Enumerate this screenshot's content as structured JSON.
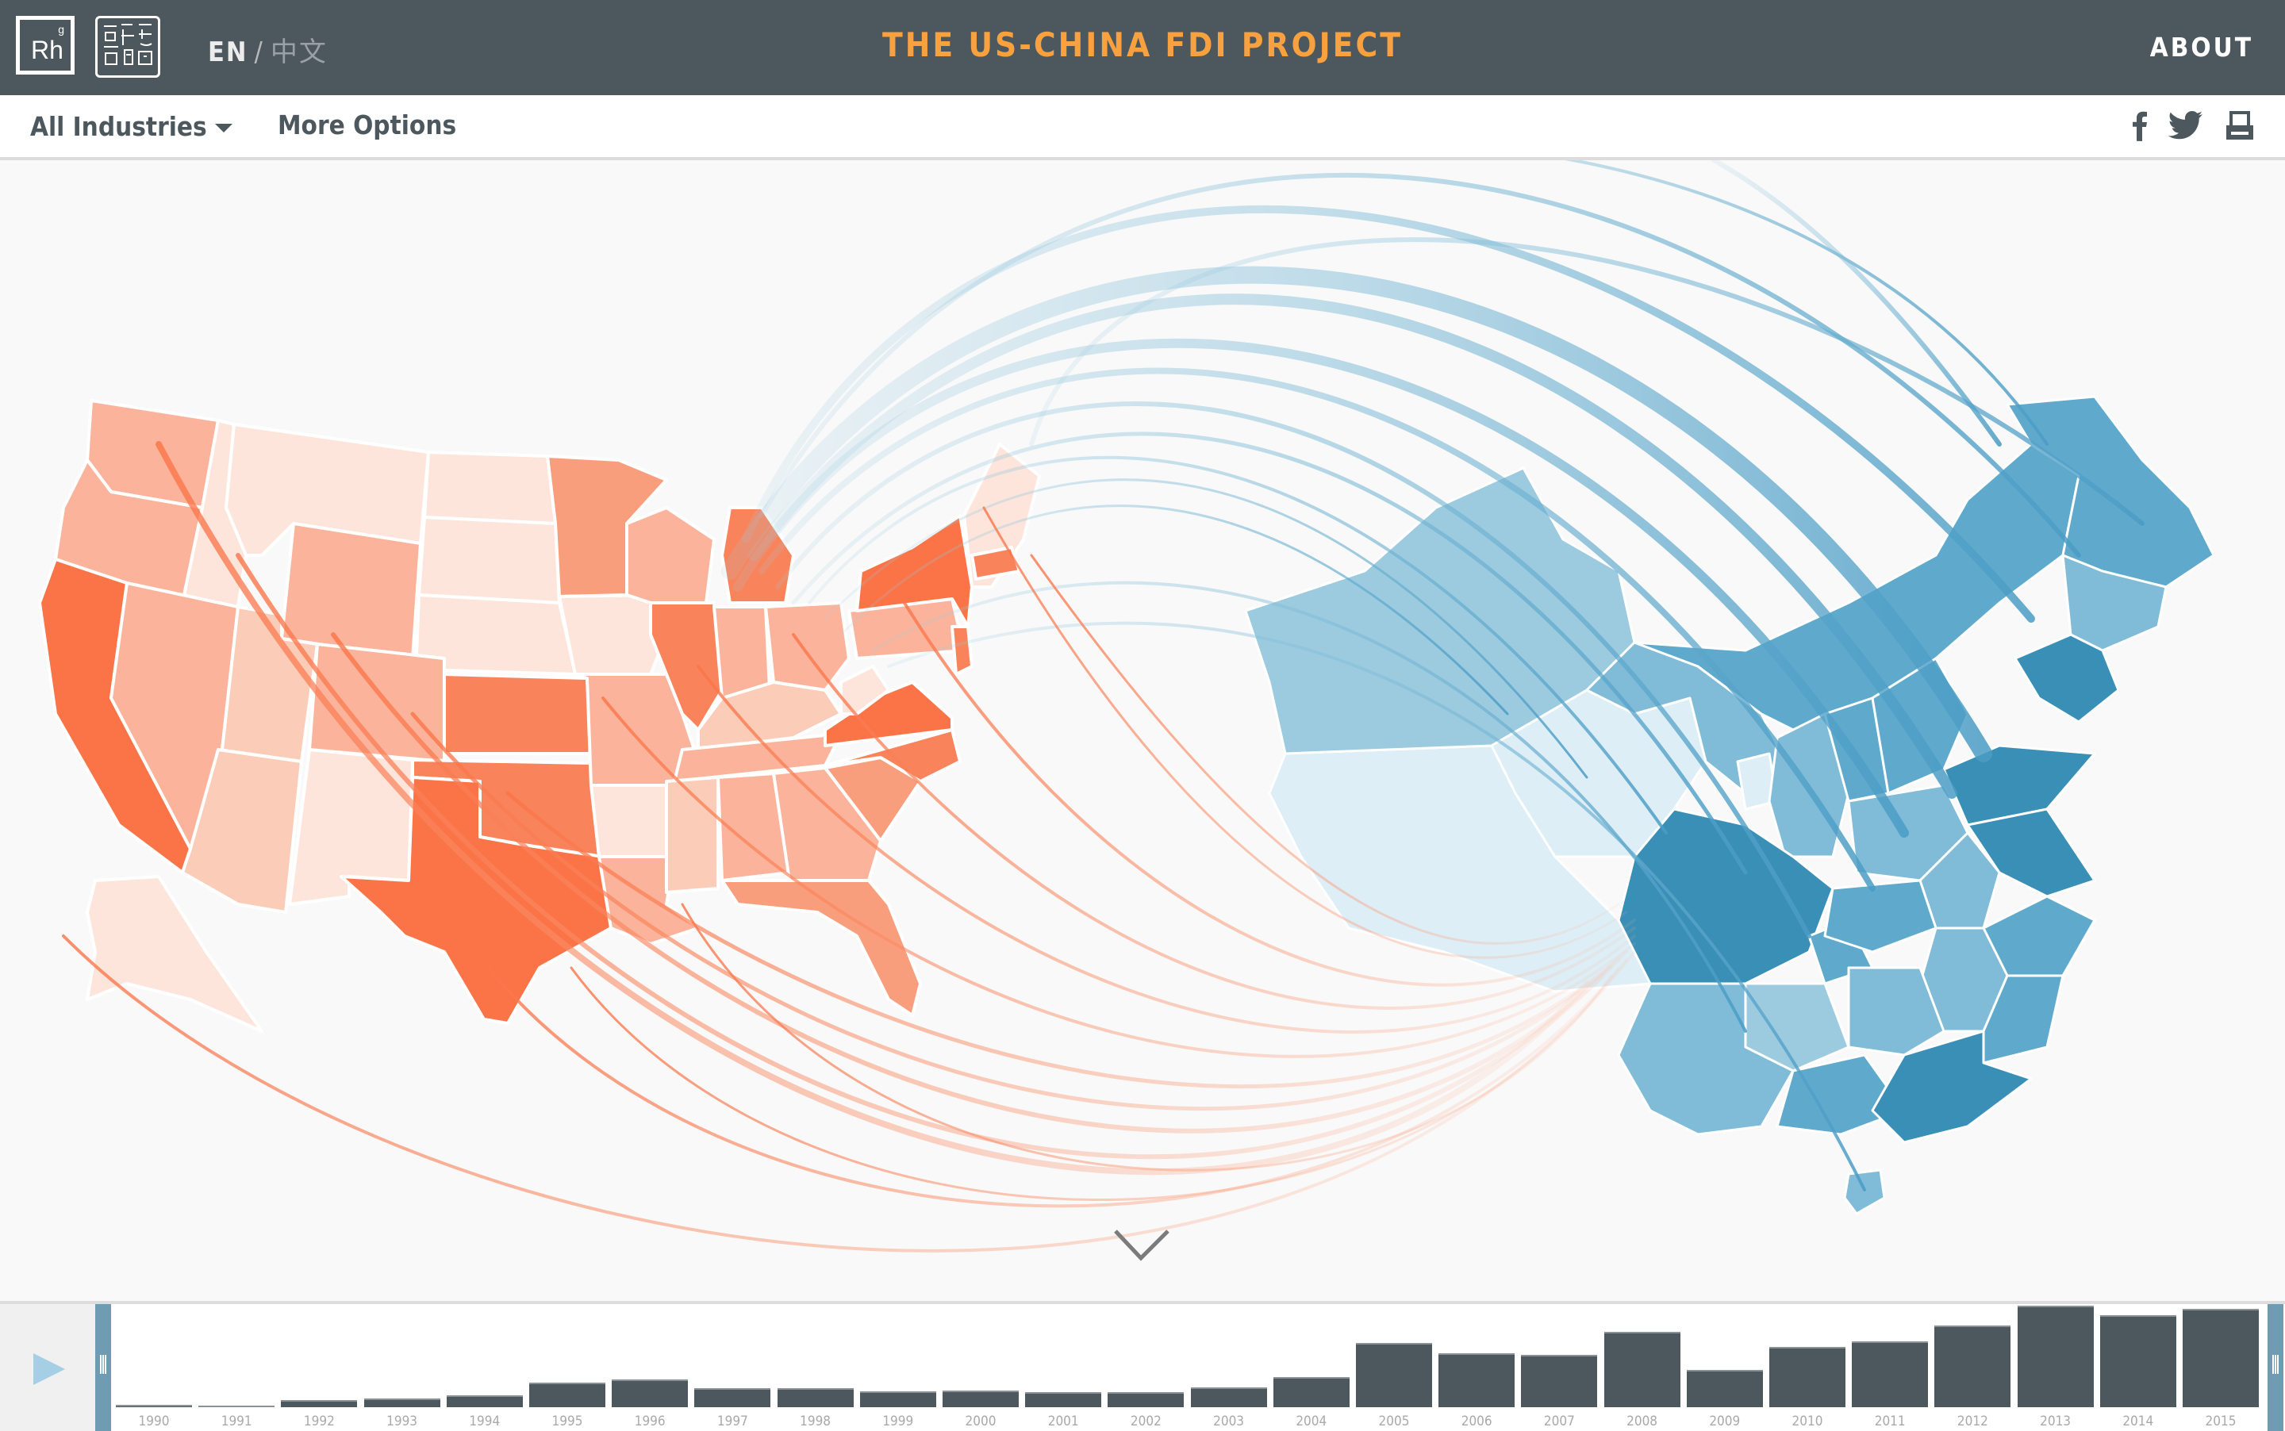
{
  "header": {
    "logo_text": "Rh",
    "logo_superscript": "g",
    "seal_label": "seal-logo",
    "lang_en": "EN",
    "lang_sep": "/",
    "lang_zh": "中文",
    "title": "THE US-CHINA FDI PROJECT",
    "about": "ABOUT"
  },
  "toolbar": {
    "industries_label": "All Industries",
    "more_options_label": "More Options",
    "social_icons": [
      "facebook-icon",
      "twitter-icon",
      "print-icon"
    ]
  },
  "colors": {
    "header_bg": "#4d585e",
    "title_accent": "#f9a03f",
    "us_scale": [
      "#fde5dc",
      "#fbcdb9",
      "#fbb49b",
      "#f99e7c",
      "#f9845c",
      "#fb7448"
    ],
    "china_scale": [
      "#ddeef6",
      "#9ccbe0",
      "#80bcd8",
      "#5fa9cd",
      "#3a8fb7"
    ],
    "bar": "#4d585e",
    "handle": "#6f9cb3",
    "play": "#a4cfe4"
  },
  "map": {
    "left_region": "United States",
    "right_region": "China",
    "scroll_hint": "chevron-down-icon"
  },
  "timeline": {
    "play_label": "play",
    "years": [
      "1990",
      "1991",
      "1992",
      "1993",
      "1994",
      "1995",
      "1996",
      "1997",
      "1998",
      "1999",
      "2000",
      "2001",
      "2002",
      "2003",
      "2004",
      "2005",
      "2006",
      "2007",
      "2008",
      "2009",
      "2010",
      "2011",
      "2012",
      "2013",
      "2014",
      "2015"
    ],
    "bar_heights": [
      3,
      1,
      9,
      11,
      15,
      31,
      35,
      24,
      24,
      20,
      21,
      19,
      19,
      25,
      38,
      81,
      68,
      66,
      95,
      47,
      76,
      83,
      103,
      128,
      116,
      124
    ],
    "range_start": "1990",
    "range_end": "2015"
  }
}
